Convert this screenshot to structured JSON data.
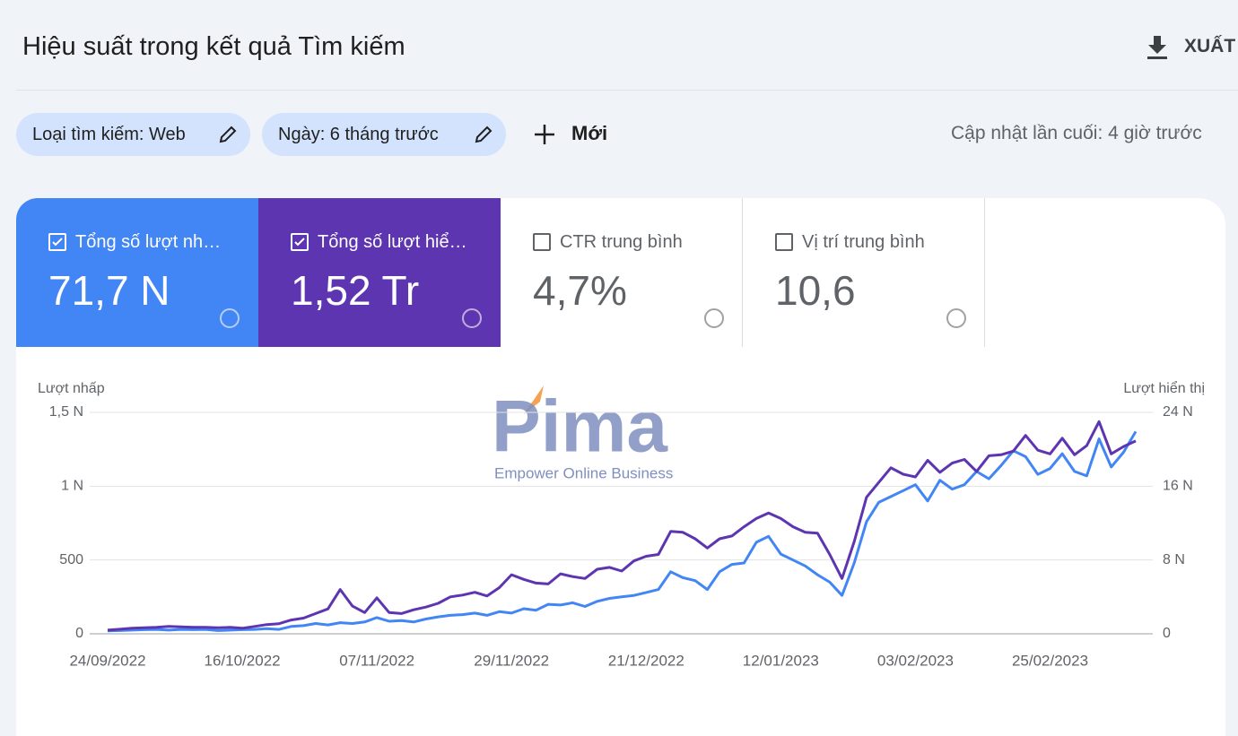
{
  "header": {
    "title": "Hiệu suất trong kết quả Tìm kiếm",
    "export": "XUẤT"
  },
  "filters": {
    "chips": [
      "Loại tìm kiếm: Web",
      "Ngày: 6 tháng trước"
    ],
    "new": "Mới",
    "updated": "Cập nhật lần cuối: 4 giờ trước"
  },
  "cards": [
    {
      "label": "Tổng số lượt nh…",
      "value": "71,7 N",
      "checked": true,
      "color": "#4285f4"
    },
    {
      "label": "Tổng số lượt hiể…",
      "value": "1,52 Tr",
      "checked": true,
      "color": "#5e35b1"
    },
    {
      "label": "CTR trung bình",
      "value": "4,7%",
      "checked": false,
      "color": "#ffffff"
    },
    {
      "label": "Vị trí trung bình",
      "value": "10,6",
      "checked": false,
      "color": "#ffffff"
    }
  ],
  "watermark": {
    "brand": "Pima",
    "tagline": "Empower Online Business"
  },
  "chart_data": {
    "type": "line",
    "categories": [
      "24/09/2022",
      null,
      null,
      null,
      null,
      null,
      null,
      null,
      null,
      null,
      null,
      "16/10/2022",
      null,
      null,
      null,
      null,
      null,
      null,
      null,
      null,
      null,
      null,
      "07/11/2022",
      null,
      null,
      null,
      null,
      null,
      null,
      null,
      null,
      null,
      null,
      "29/11/2022",
      null,
      null,
      null,
      null,
      null,
      null,
      null,
      null,
      null,
      null,
      "21/12/2022",
      null,
      null,
      null,
      null,
      null,
      null,
      null,
      null,
      null,
      null,
      "12/01/2023",
      null,
      null,
      null,
      null,
      null,
      null,
      null,
      null,
      null,
      null,
      "03/02/2023",
      null,
      null,
      null,
      null,
      null,
      null,
      null,
      null,
      null,
      null,
      "25/02/2023",
      null,
      null,
      null,
      null,
      null,
      null,
      null
    ],
    "series": [
      {
        "name": "Lượt nhấp",
        "color": "#4285f4",
        "values": [
          20,
          22,
          25,
          28,
          30,
          25,
          30,
          28,
          30,
          22,
          25,
          28,
          30,
          35,
          30,
          50,
          55,
          70,
          60,
          75,
          70,
          80,
          110,
          85,
          90,
          80,
          100,
          115,
          125,
          130,
          140,
          125,
          150,
          140,
          170,
          160,
          200,
          195,
          210,
          185,
          220,
          240,
          250,
          260,
          280,
          300,
          420,
          380,
          360,
          300,
          420,
          470,
          480,
          620,
          660,
          540,
          500,
          460,
          400,
          350,
          260,
          480,
          760,
          890,
          930,
          970,
          1010,
          900,
          1040,
          980,
          1010,
          1100,
          1050,
          1140,
          1240,
          1200,
          1080,
          1120,
          1220,
          1100,
          1070,
          1320,
          1130,
          1230,
          1370
        ]
      },
      {
        "name": "Lượt hiển thị",
        "color": "#5e35b1",
        "axis": "y2",
        "values": [
          400,
          500,
          600,
          650,
          700,
          800,
          750,
          700,
          700,
          650,
          700,
          600,
          800,
          1000,
          1100,
          1500,
          1700,
          2200,
          2700,
          4800,
          3000,
          2300,
          3900,
          2300,
          2200,
          2600,
          2900,
          3300,
          4000,
          4200,
          4500,
          4100,
          5000,
          6400,
          5900,
          5500,
          5400,
          6500,
          6200,
          6000,
          7000,
          7200,
          6800,
          7900,
          8400,
          8600,
          11100,
          11000,
          10300,
          9300,
          10300,
          10600,
          11600,
          12500,
          13100,
          12500,
          11600,
          11000,
          10900,
          8600,
          6000,
          10000,
          14800,
          16400,
          18000,
          17300,
          17000,
          18800,
          17500,
          18500,
          18900,
          17600,
          19300,
          19400,
          19800,
          21500,
          19900,
          19500,
          21200,
          19400,
          20400,
          23000,
          19500,
          20300,
          20900
        ]
      }
    ],
    "ylim": [
      0,
      1500
    ],
    "yticks": [
      0,
      500,
      {
        "value": 1000,
        "label": "1 N"
      },
      {
        "value": 1500,
        "label": "1,5 N"
      }
    ],
    "y2lim": [
      0,
      24000
    ],
    "y2ticks": [
      0,
      {
        "value": 8000,
        "label": "8 N"
      },
      {
        "value": 16000,
        "label": "16 N"
      },
      {
        "value": 24000,
        "label": "24 N"
      }
    ],
    "grid": true
  }
}
